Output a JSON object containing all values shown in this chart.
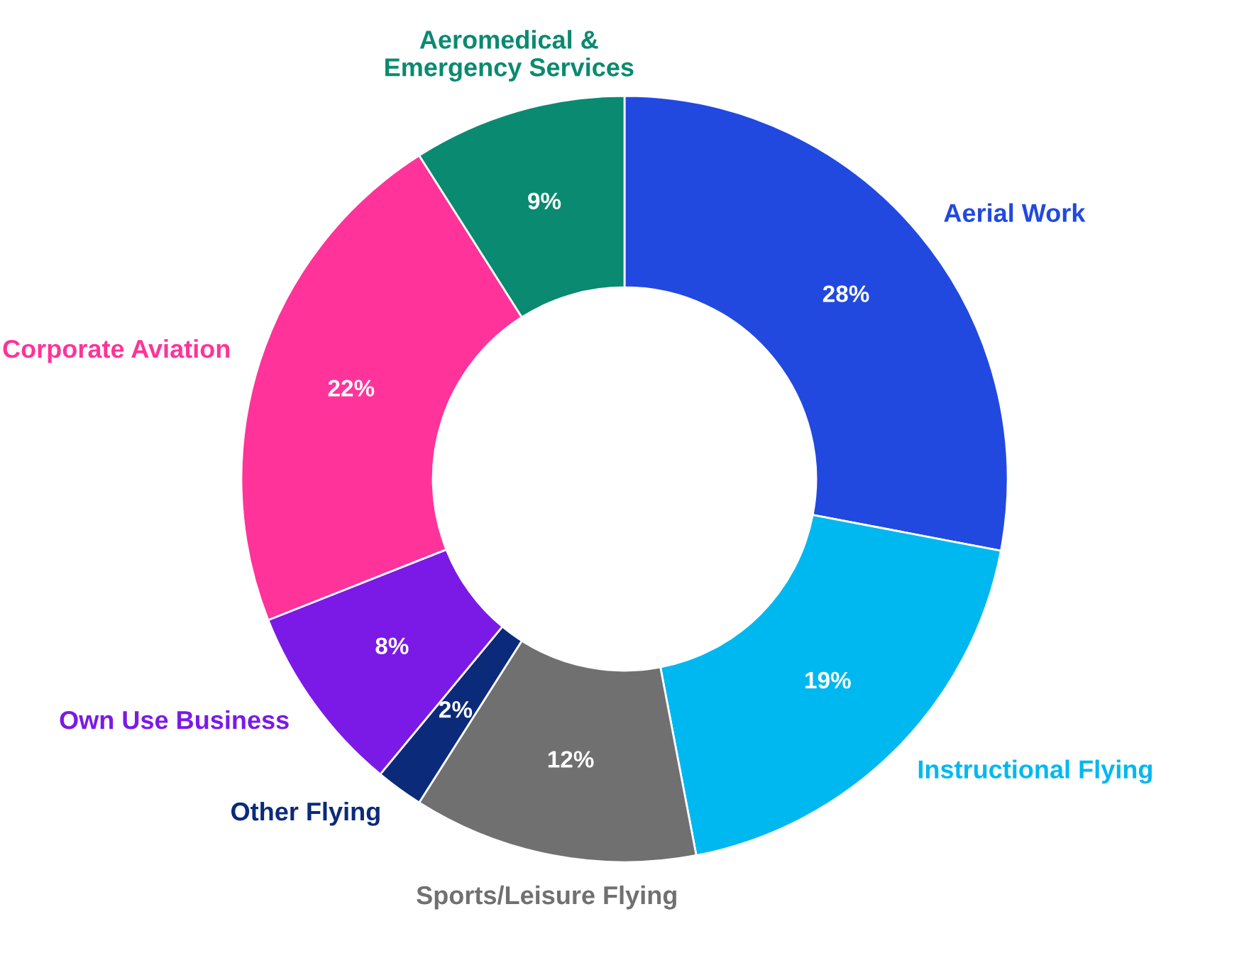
{
  "chart_data": {
    "type": "donut",
    "categories": [
      "Aerial Work",
      "Instructional Flying",
      "Sports/Leisure Flying",
      "Other Flying",
      "Own Use Business",
      "Corporate Aviation",
      "Aeromedical &\nEmergency Services"
    ],
    "values": [
      28,
      19,
      12,
      2,
      8,
      22,
      9
    ],
    "colors": [
      "#2149e0",
      "#00b8f0",
      "#707070",
      "#0b2a7a",
      "#7b1ae6",
      "#ff3399",
      "#0a8a70"
    ],
    "value_labels": [
      "28%",
      "19%",
      "12%",
      "2%",
      "8%",
      "22%",
      "9%"
    ],
    "legend": false
  }
}
